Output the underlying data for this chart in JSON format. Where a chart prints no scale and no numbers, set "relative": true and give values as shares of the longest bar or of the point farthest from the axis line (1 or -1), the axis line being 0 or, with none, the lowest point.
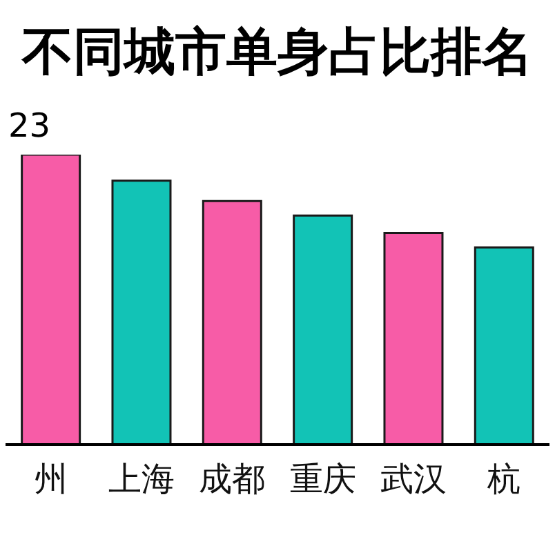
{
  "chart_data": {
    "type": "bar",
    "title": "不同城市单身占比排名",
    "subtitle": "23",
    "categories": [
      "州",
      "上海",
      "成都",
      "重庆",
      "武汉",
      "杭"
    ],
    "values": [
      1,
      0.91,
      0.84,
      0.79,
      0.73,
      0.68
    ],
    "colors": [
      "#f75ca7",
      "#12c3b6",
      "#f75ca7",
      "#12c3b6",
      "#f75ca7",
      "#12c3b6"
    ],
    "relative": true
  }
}
